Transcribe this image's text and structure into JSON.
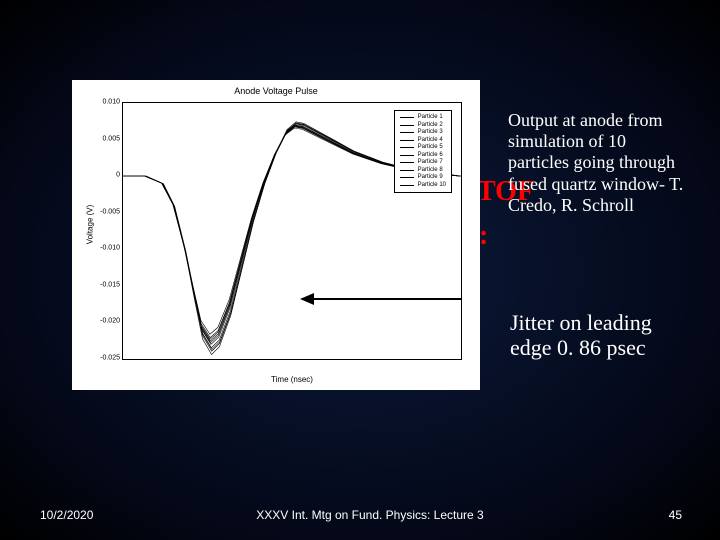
{
  "background_text": {
    "bullet_tof": "TOF",
    "colon_line": ":"
  },
  "chart": {
    "type": "line",
    "title": "Anode Voltage Pulse",
    "xlabel": "Time (nsec)",
    "ylabel": "Voltage (V)",
    "xlim": [
      0,
      3.0
    ],
    "ylim": [
      -0.025,
      0.01
    ],
    "ytick_step": 0.005,
    "yticks": [
      0.01,
      0.005,
      0.0,
      -0.005,
      -0.01,
      -0.015,
      -0.02,
      -0.025
    ],
    "background_color": "#ffffff",
    "line_color": "#000000",
    "line_width": 0.6,
    "n_series": 10,
    "legend_labels": [
      "Particle 1",
      "Particle 2",
      "Particle 3",
      "Particle 4",
      "Particle 5",
      "Particle 6",
      "Particle 7",
      "Particle 8",
      "Particle 9",
      "Particle 10"
    ],
    "base_series": {
      "x": [
        0.0,
        0.2,
        0.35,
        0.45,
        0.55,
        0.63,
        0.7,
        0.78,
        0.85,
        0.95,
        1.05,
        1.15,
        1.25,
        1.35,
        1.45,
        1.53,
        1.6,
        1.7,
        1.85,
        2.05,
        2.3,
        2.6,
        3.0
      ],
      "y": [
        0.0,
        0.0,
        -0.001,
        -0.004,
        -0.01,
        -0.016,
        -0.021,
        -0.023,
        -0.022,
        -0.018,
        -0.012,
        -0.006,
        -0.001,
        0.003,
        0.006,
        0.007,
        0.0068,
        0.006,
        0.0048,
        0.0032,
        0.0018,
        0.0007,
        0.0
      ]
    },
    "jitter_x": [
      0.0,
      -0.01,
      0.012,
      -0.008,
      0.006,
      -0.014,
      0.01,
      -0.006,
      0.014,
      -0.012
    ],
    "jitter_amp": [
      1.0,
      0.96,
      1.04,
      0.98,
      1.02,
      0.94,
      1.06,
      0.99,
      1.03,
      0.97
    ]
  },
  "annotations": {
    "output": "Output at anode from simulation of 10 particles going through fused quartz window- T. Credo, R. Schroll",
    "jitter": "Jitter on leading edge 0. 86 psec"
  },
  "footer": {
    "date": "10/2/2020",
    "center": "XXXV Int. Mtg on Fund. Physics: Lecture 3",
    "page": "45"
  },
  "colors": {
    "accent_red": "#ff0000",
    "text_white": "#ffffff",
    "text_black": "#000000"
  }
}
